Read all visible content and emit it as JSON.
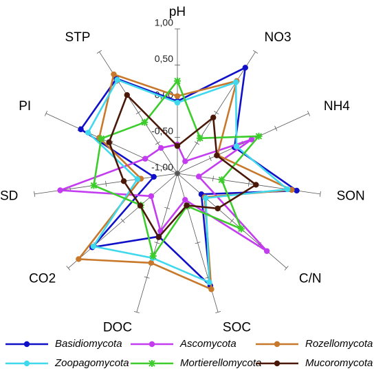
{
  "chart_data": {
    "type": "radar",
    "categories": [
      "pH",
      "NO3",
      "NH4",
      "SON",
      "C/N",
      "SOC",
      "DOC",
      "CO2",
      "SD",
      "PI",
      "STP"
    ],
    "ylim": [
      -1,
      1
    ],
    "yticks": [
      {
        "value": -1,
        "label": "-1,00"
      },
      {
        "value": -0.5,
        "label": "-0,50"
      },
      {
        "value": 0,
        "label": "0,00"
      },
      {
        "value": 0.5,
        "label": "0,50"
      },
      {
        "value": 1,
        "label": "1,00"
      }
    ],
    "series": [
      {
        "name": "Basidiomycota",
        "color": "#1010c8",
        "marker": "circle",
        "values": [
          0.0,
          0.74,
          -0.13,
          0.67,
          -0.56,
          0.62,
          -0.09,
          0.56,
          -0.67,
          0.47,
          0.56
        ]
      },
      {
        "name": "Ascomycota",
        "color": "#c43cf0",
        "marker": "circle",
        "values": [
          -0.6,
          -0.8,
          0.13,
          -0.7,
          0.64,
          -0.62,
          -0.17,
          -0.52,
          0.64,
          -0.51,
          -0.58
        ]
      },
      {
        "name": "Rozellomycota",
        "color": "#c8782a",
        "marker": "circle",
        "values": [
          0.07,
          0.52,
          -0.39,
          0.6,
          -0.5,
          0.67,
          0.29,
          0.81,
          -0.49,
          0.19,
          0.63
        ]
      },
      {
        "name": "Zoopagomycota",
        "color": "#40d8ec",
        "marker": "circle",
        "values": [
          -0.02,
          0.5,
          -0.1,
          0.54,
          -0.48,
          0.57,
          0.22,
          0.54,
          -0.44,
          0.36,
          0.54
        ]
      },
      {
        "name": "Mortierellomycota",
        "color": "#3ccc2c",
        "marker": "star",
        "values": [
          0.28,
          -0.42,
          0.24,
          -0.38,
          0.17,
          -0.53,
          0.19,
          -0.33,
          0.17,
          0.16,
          -0.16
        ]
      },
      {
        "name": "Mucoromycota",
        "color": "#4a1808",
        "marker": "circle",
        "values": [
          -0.62,
          -0.08,
          -0.4,
          0.1,
          -0.26,
          -0.54,
          -0.08,
          -0.32,
          -0.25,
          0.04,
          0.29
        ]
      }
    ]
  }
}
